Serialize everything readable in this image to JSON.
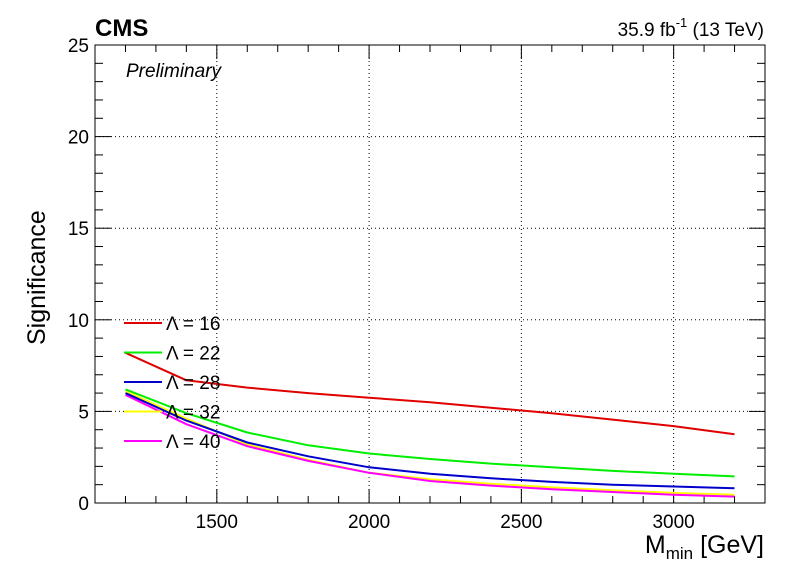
{
  "chart_data": {
    "type": "line",
    "experiment_label": "CMS",
    "status_label": "Preliminary",
    "luminosity_label": "35.9 fb",
    "luminosity_superscript": "-1",
    "energy_label": " (13 TeV)",
    "xlabel": "M",
    "xlabel_subscript": "min",
    "xlabel_unit": " [GeV]",
    "ylabel": "Significance",
    "xlim": [
      1100,
      3300
    ],
    "ylim": [
      0,
      25
    ],
    "x_ticks": [
      1500,
      2000,
      2500,
      3000
    ],
    "y_ticks": [
      0,
      5,
      10,
      15,
      20,
      25
    ],
    "grid": true,
    "legend_position": "left-middle",
    "x": [
      1200,
      1400,
      1600,
      1800,
      2000,
      2200,
      2400,
      2600,
      2800,
      3000,
      3200
    ],
    "series": [
      {
        "name": "Λ = 16",
        "color": "#e00000",
        "values": [
          8.2,
          6.7,
          6.3,
          6.0,
          5.75,
          5.5,
          5.2,
          4.9,
          4.55,
          4.2,
          3.75
        ]
      },
      {
        "name": "Λ = 22",
        "color": "#00ee00",
        "values": [
          6.2,
          4.9,
          3.85,
          3.15,
          2.7,
          2.4,
          2.15,
          1.95,
          1.75,
          1.6,
          1.45
        ]
      },
      {
        "name": "Λ = 28",
        "color": "#0000cc",
        "values": [
          6.0,
          4.5,
          3.3,
          2.55,
          1.95,
          1.6,
          1.35,
          1.15,
          1.0,
          0.9,
          0.8
        ]
      },
      {
        "name": "Λ = 32",
        "color": "#ffff00",
        "values": [
          6.1,
          4.6,
          3.2,
          2.35,
          1.65,
          1.3,
          1.05,
          0.85,
          0.7,
          0.55,
          0.45
        ]
      },
      {
        "name": "Λ = 40",
        "color": "#ff00ff",
        "values": [
          5.9,
          4.3,
          3.1,
          2.3,
          1.65,
          1.2,
          0.95,
          0.75,
          0.6,
          0.45,
          0.35
        ]
      }
    ]
  }
}
